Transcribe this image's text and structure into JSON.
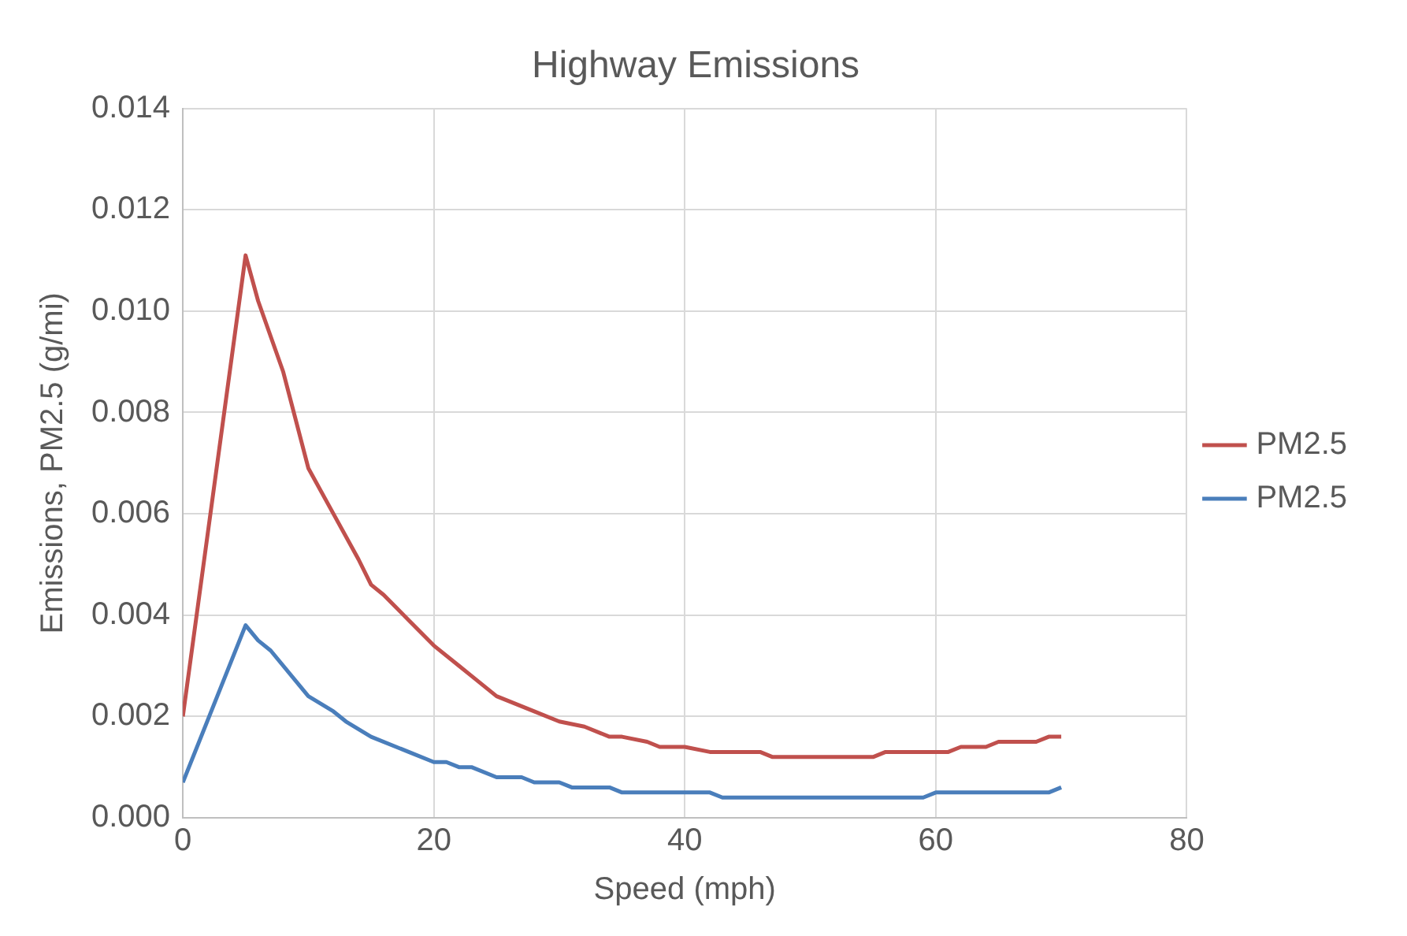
{
  "chart_data": {
    "type": "line",
    "title": "Highway Emissions",
    "xlabel": "Speed (mph)",
    "ylabel": "Emissions, PM2.5 (g/mi)",
    "xlim": [
      0,
      80
    ],
    "xticks": [
      0,
      20,
      40,
      60,
      80
    ],
    "ylim": [
      0,
      0.014
    ],
    "yticks": [
      {
        "value": 0,
        "label": "0.000"
      },
      {
        "value": 0.002,
        "label": "0.002"
      },
      {
        "value": 0.004,
        "label": "0.004"
      },
      {
        "value": 0.006,
        "label": "0.006"
      },
      {
        "value": 0.008,
        "label": "0.008"
      },
      {
        "value": 0.01,
        "label": "0.010"
      },
      {
        "value": 0.012,
        "label": "0.012"
      },
      {
        "value": 0.014,
        "label": "0.014"
      }
    ],
    "grid": true,
    "legend": "right",
    "marker": "none",
    "line_style": "solid",
    "series": [
      {
        "name": "PM2.5",
        "color": "#c0504d",
        "x": [
          0,
          5,
          6,
          8,
          10,
          12,
          14,
          15,
          16,
          18,
          20,
          22,
          23,
          25,
          28,
          30,
          32,
          34,
          35,
          37,
          38,
          40,
          42,
          46,
          47,
          55,
          56,
          61,
          62,
          64,
          65,
          68,
          69,
          70
        ],
        "values": [
          0.002,
          0.0111,
          0.0102,
          0.0088,
          0.0069,
          0.006,
          0.0051,
          0.0046,
          0.0044,
          0.0039,
          0.0034,
          0.003,
          0.0028,
          0.0024,
          0.0021,
          0.0019,
          0.0018,
          0.0016,
          0.0016,
          0.0015,
          0.0014,
          0.0014,
          0.0013,
          0.0013,
          0.0012,
          0.0012,
          0.0013,
          0.0013,
          0.0014,
          0.0014,
          0.0015,
          0.0015,
          0.0016,
          0.0016
        ]
      },
      {
        "name": "PM2.5",
        "color": "#4a7ebb",
        "x": [
          0,
          5,
          6,
          7,
          10,
          12,
          13,
          15,
          18,
          20,
          21,
          22,
          23,
          25,
          27,
          28,
          30,
          31,
          34,
          35,
          42,
          43,
          59,
          60,
          69,
          70
        ],
        "values": [
          0.0007,
          0.0038,
          0.0035,
          0.0033,
          0.0024,
          0.0021,
          0.0019,
          0.0016,
          0.0013,
          0.0011,
          0.0011,
          0.001,
          0.001,
          0.0008,
          0.0008,
          0.0007,
          0.0007,
          0.0006,
          0.0006,
          0.0005,
          0.0005,
          0.0004,
          0.0004,
          0.0005,
          0.0005,
          0.0006
        ]
      }
    ]
  }
}
